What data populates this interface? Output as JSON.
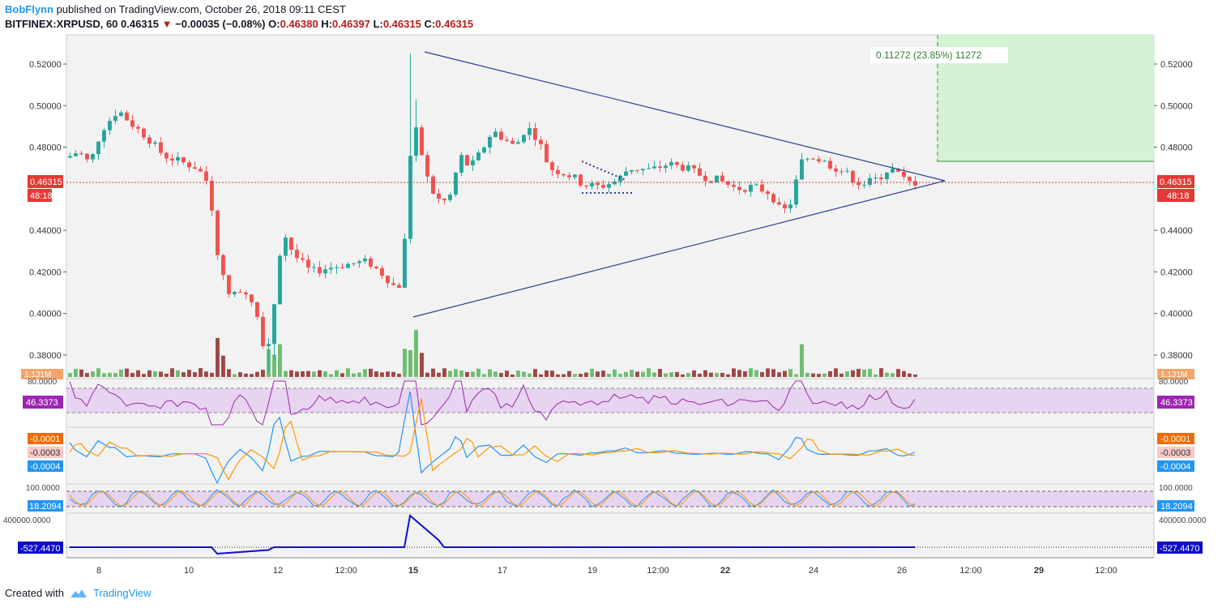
{
  "header": {
    "author": "BobFlynn",
    "published_text": "published on TradingView.com, October 26, 2018 09:11 CEST",
    "symbol": "BITFINEX:XRPUSD, 60",
    "last": "0.46315",
    "change": "−0.00035 (−0.08%)",
    "open_label": "O:",
    "open": "0.46380",
    "high_label": "H:",
    "high": "0.46397",
    "low_label": "L:",
    "low": "0.46315",
    "close_label": "C:",
    "close": "0.46315"
  },
  "footer": {
    "created_with": "Created with",
    "brand": "TradingView"
  },
  "colors": {
    "up": "#26a69a",
    "down": "#ef5350",
    "trendline": "#2a3f8f",
    "target_zone": "#d4f2d4",
    "rsi": "#9c27b0",
    "macd": "#2196f3",
    "signal": "#ff9800",
    "obv": "#0d0dcc",
    "price_label": "#e53935"
  },
  "chart_data": {
    "type": "candlestick",
    "price_axis": {
      "min": 0.37,
      "max": 0.53,
      "ticks": [
        "0.52000",
        "0.50000",
        "0.48000",
        "0.46315",
        "0.44000",
        "0.42000",
        "0.40000",
        "0.38000"
      ]
    },
    "current_price_label": "0.46315",
    "countdown_label": "48:18",
    "volume_label": "1.131M",
    "x_ticks": [
      "8",
      "10",
      "12",
      "12:00",
      "15",
      "17",
      "19",
      "12:00",
      "22",
      "24",
      "26",
      "12:00",
      "29",
      "12:00"
    ],
    "price_path": [
      [
        0,
        0.475
      ],
      [
        2,
        0.478
      ],
      [
        4,
        0.472
      ],
      [
        6,
        0.488
      ],
      [
        9,
        0.498
      ],
      [
        11,
        0.492
      ],
      [
        14,
        0.485
      ],
      [
        17,
        0.476
      ],
      [
        20,
        0.473
      ],
      [
        23,
        0.47
      ],
      [
        25,
        0.462
      ],
      [
        26,
        0.44
      ],
      [
        27,
        0.42
      ],
      [
        29,
        0.408
      ],
      [
        31,
        0.412
      ],
      [
        33,
        0.405
      ],
      [
        35,
        0.38
      ],
      [
        36,
        0.392
      ],
      [
        37,
        0.418
      ],
      [
        38,
        0.44
      ],
      [
        40,
        0.428
      ],
      [
        43,
        0.42
      ],
      [
        46,
        0.422
      ],
      [
        50,
        0.424
      ],
      [
        53,
        0.425
      ],
      [
        56,
        0.418
      ],
      [
        58,
        0.412
      ],
      [
        59,
        0.415
      ],
      [
        60,
        0.455
      ],
      [
        61,
        0.498
      ],
      [
        62,
        0.48
      ],
      [
        64,
        0.46
      ],
      [
        66,
        0.453
      ],
      [
        68,
        0.458
      ],
      [
        69,
        0.477
      ],
      [
        71,
        0.47
      ],
      [
        73,
        0.478
      ],
      [
        75,
        0.488
      ],
      [
        77,
        0.484
      ],
      [
        79,
        0.48
      ],
      [
        81,
        0.49
      ],
      [
        83,
        0.484
      ],
      [
        85,
        0.47
      ],
      [
        87,
        0.468
      ],
      [
        89,
        0.466
      ],
      [
        91,
        0.462
      ],
      [
        94,
        0.461
      ],
      [
        97,
        0.464
      ],
      [
        99,
        0.47
      ],
      [
        103,
        0.469
      ],
      [
        106,
        0.472
      ],
      [
        109,
        0.47
      ],
      [
        112,
        0.466
      ],
      [
        115,
        0.464
      ],
      [
        118,
        0.46
      ],
      [
        121,
        0.461
      ],
      [
        124,
        0.458
      ],
      [
        126,
        0.448
      ],
      [
        128,
        0.455
      ],
      [
        129,
        0.472
      ],
      [
        131,
        0.476
      ],
      [
        134,
        0.472
      ],
      [
        137,
        0.468
      ],
      [
        140,
        0.462
      ],
      [
        143,
        0.465
      ],
      [
        145,
        0.47
      ],
      [
        147,
        0.466
      ],
      [
        148,
        0.463
      ]
    ],
    "triangle": {
      "upper": [
        [
          60,
          0.525
        ],
        [
          152,
          0.4625
        ]
      ],
      "lower": [
        [
          59,
          0.399
        ],
        [
          152,
          0.4625
        ]
      ]
    },
    "flag_lines": {
      "upper": [
        [
          86,
          0.47
        ],
        [
          92,
          0.462
        ]
      ],
      "lower": [
        [
          86,
          0.457
        ],
        [
          92,
          0.457
        ]
      ]
    },
    "target_zone": {
      "label": "0.11272 (23.85%) 11272",
      "from": 0.4725,
      "to": 0.5325
    },
    "rsi": {
      "label": "80.0000",
      "value": "46.3373",
      "upper": 70,
      "lower": 30
    },
    "macd": {
      "values": [
        "-0.0001",
        "-0.0003",
        "-0.0004"
      ]
    },
    "stoch": {
      "label": "100.0000",
      "value": "18.2094"
    },
    "obv": {
      "label": "400000.0000",
      "value": "-527.4470"
    }
  }
}
